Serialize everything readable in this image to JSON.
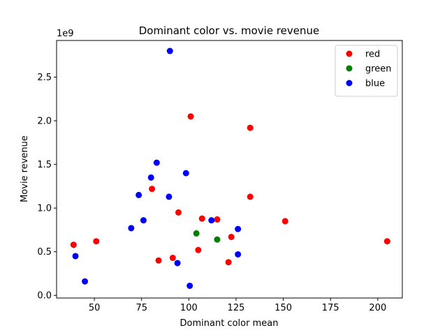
{
  "chart_data": {
    "type": "scatter",
    "title": "Dominant color vs. movie revenue",
    "xlabel": "Dominant color mean",
    "ylabel": "Movie revenue",
    "y_offset_label": "1e9",
    "xlim": [
      30,
      213
    ],
    "ylim": [
      -0.03,
      2.92
    ],
    "x_ticks": [
      50,
      75,
      100,
      125,
      150,
      175,
      200
    ],
    "x_tick_labels": [
      "50",
      "75",
      "100",
      "125",
      "150",
      "175",
      "200"
    ],
    "y_ticks": [
      0.0,
      0.5,
      1.0,
      1.5,
      2.0,
      2.5
    ],
    "y_tick_labels": [
      "0.0",
      "0.5",
      "1.0",
      "1.5",
      "2.0",
      "2.5"
    ],
    "grid": false,
    "legend_position": "top-right",
    "series": [
      {
        "name": "red",
        "color": "#ff0000",
        "points": [
          [
            39,
            0.58
          ],
          [
            51,
            0.62
          ],
          [
            80.5,
            1.22
          ],
          [
            84,
            0.4
          ],
          [
            91.5,
            0.43
          ],
          [
            94.5,
            0.95
          ],
          [
            101,
            2.05
          ],
          [
            105,
            0.52
          ],
          [
            107,
            0.88
          ],
          [
            115,
            0.87
          ],
          [
            121,
            0.38
          ],
          [
            122.5,
            0.67
          ],
          [
            132.5,
            1.92
          ],
          [
            132.5,
            1.13
          ],
          [
            151,
            0.85
          ],
          [
            205,
            0.62
          ]
        ]
      },
      {
        "name": "green",
        "color": "#008000",
        "points": [
          [
            104,
            0.71
          ],
          [
            115,
            0.64
          ]
        ]
      },
      {
        "name": "blue",
        "color": "#0000ff",
        "points": [
          [
            40,
            0.45
          ],
          [
            45,
            0.16
          ],
          [
            69.5,
            0.77
          ],
          [
            73.5,
            1.15
          ],
          [
            76,
            0.86
          ],
          [
            80,
            1.35
          ],
          [
            83,
            1.52
          ],
          [
            89.5,
            1.13
          ],
          [
            90,
            2.8
          ],
          [
            94,
            0.37
          ],
          [
            98.5,
            1.4
          ],
          [
            100.5,
            0.11
          ],
          [
            112,
            0.86
          ],
          [
            126,
            0.76
          ],
          [
            126,
            0.47
          ]
        ]
      }
    ]
  }
}
